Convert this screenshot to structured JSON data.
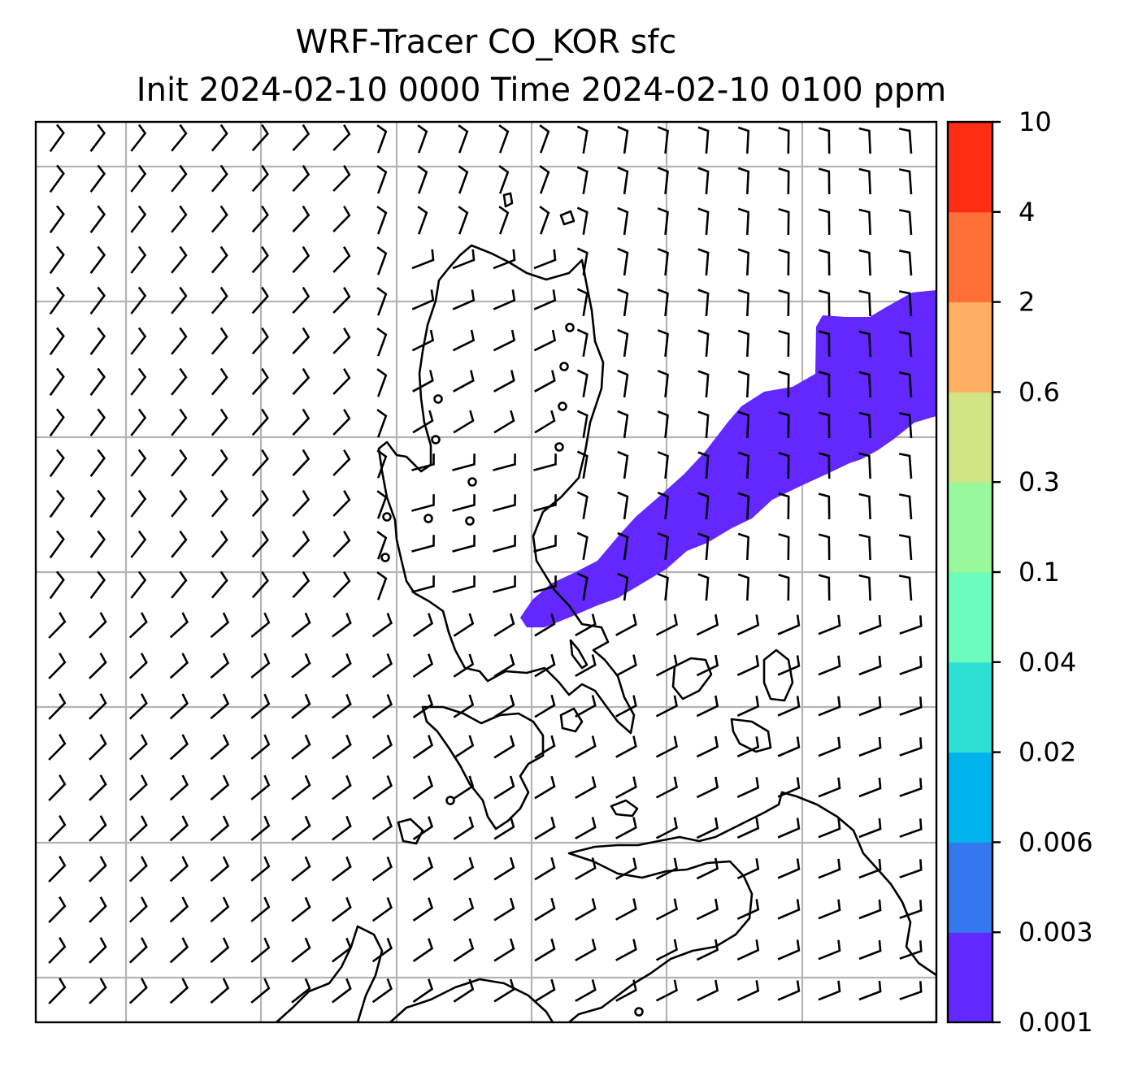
{
  "title": {
    "line1": "WRF-Tracer CO_KOR sfc",
    "line2": "Init 2024-02-10 0000 Time 2024-02-10 0100 ppm"
  },
  "colorbar": {
    "levels": [
      "0.001",
      "0.003",
      "0.006",
      "0.02",
      "0.04",
      "0.1",
      "0.3",
      "0.6",
      "2",
      "4",
      "10"
    ],
    "colors": [
      "#6228ff",
      "#3478f0",
      "#00b3ea",
      "#2ee0d4",
      "#6cfcbc",
      "#98f89c",
      "#d2e484",
      "#ffb060",
      "#ff7038",
      "#ff2c14"
    ]
  },
  "map": {
    "plume_color": "#6228ff",
    "plume_level": "0.001–0.003",
    "coastline_color": "#000000",
    "gridline_color": "#b4b4b4",
    "barbs": "10 kt wind barbs, west-northwest flow turning northerly over the peninsula"
  }
}
